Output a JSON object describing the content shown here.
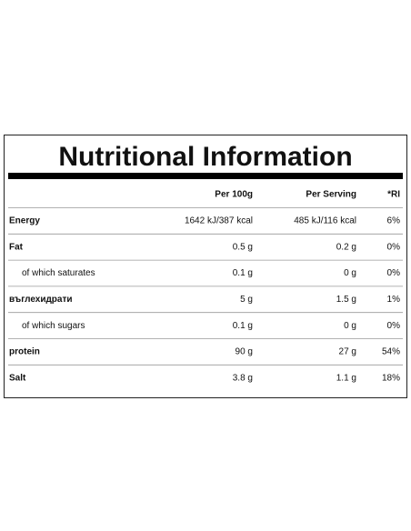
{
  "table": {
    "title": "Nutritional Information",
    "columns": [
      "Per 100g",
      "Per Serving",
      "*RI"
    ],
    "rows": [
      [
        "Energy",
        "1642 kJ/387 kcal",
        "485 kJ/116 kcal",
        "6%"
      ],
      [
        "Fat",
        "0.5 g",
        "0.2 g",
        "0%"
      ],
      [
        "of which saturates",
        "0.1 g",
        "0 g",
        "0%"
      ],
      [
        "въглехидрати",
        "5 g",
        "1.5 g",
        "1%"
      ],
      [
        "of which sugars",
        "0.1 g",
        "0 g",
        "0%"
      ],
      [
        "protein",
        "90 g",
        "27 g",
        "54%"
      ],
      [
        "Salt",
        "3.8 g",
        "1.1 g",
        "18%"
      ]
    ]
  }
}
